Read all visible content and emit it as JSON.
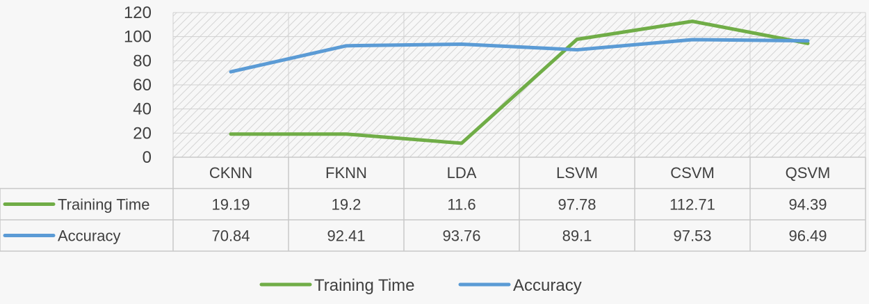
{
  "chart_data": {
    "type": "line",
    "categories": [
      "CKNN",
      "FKNN",
      "LDA",
      "LSVM",
      "CSVM",
      "QSVM"
    ],
    "series": [
      {
        "name": "Training Time",
        "values": [
          19.19,
          19.2,
          11.6,
          97.78,
          112.71,
          94.39
        ],
        "labels": [
          "19.19",
          "19.2",
          "11.6",
          "97.78",
          "112.71",
          "94.39"
        ],
        "color": "#70ad47"
      },
      {
        "name": "Accuracy",
        "values": [
          70.84,
          92.41,
          93.76,
          89.1,
          97.53,
          96.49
        ],
        "labels": [
          "70.84",
          "92.41",
          "93.76",
          "89.1",
          "97.53",
          "96.49"
        ],
        "color": "#5b9bd5"
      }
    ],
    "ylim": [
      0,
      120
    ],
    "yticks": [
      "0",
      "20",
      "40",
      "60",
      "80",
      "100",
      "120"
    ],
    "grid": true,
    "data_table": true,
    "legend_position": "bottom"
  }
}
